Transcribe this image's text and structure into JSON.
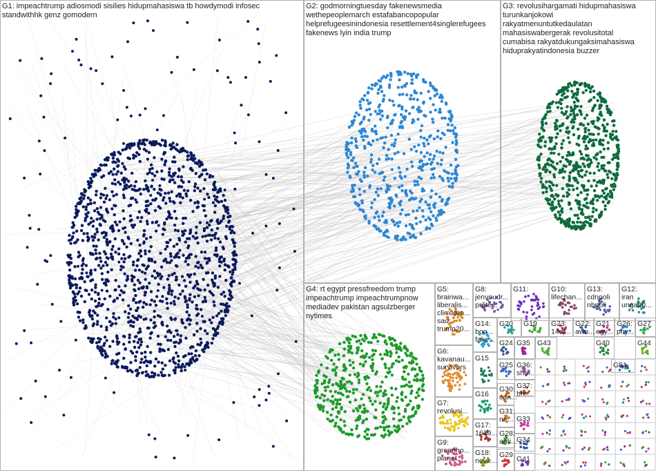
{
  "groups": [
    {
      "lines": [
        "G1: impeachtrump adiosmodi sisilies hidupmahasiswa tb howdymodi infosec",
        "standwithhk genz gomodern"
      ]
    },
    {
      "lines": [
        "G2: godmorningtuesday fakenewsmedia",
        "wethepeoplemarch estafabancopopular",
        "helprefugeesinindonesia resettlement4singlerefugees",
        "fakenews lyin india trump"
      ]
    },
    {
      "lines": [
        "G3: revolusihargamati hidupmahasiswa",
        "turunkanjokowi",
        "rakyatmenuntutkedaulatan",
        "mahasiswabergerak revolusitotal",
        "cumabisa rakyatdukungaksimahasiswa",
        "hiduprakyatindonesia buzzer"
      ]
    },
    {
      "lines": [
        "G4: rt egypt pressfreedom trump",
        "impeachtrump impeachtrumpnow",
        "mediadev pakistan agsulzberger",
        "nytimes"
      ]
    },
    {
      "lines": [
        "G5:",
        "brainwa...",
        "liberalis...",
        "climatea...",
        "sad",
        "trump20..."
      ]
    },
    {
      "lines": [
        "G6:",
        "kavanau...",
        "survivors"
      ]
    },
    {
      "lines": [
        "G7:",
        "revolusi..."
      ]
    },
    {
      "lines": [
        "G8:",
        "jenvoudr...",
        "prête..."
      ]
    },
    {
      "lines": [
        "G9:",
        "greenho...",
        "planet..."
      ]
    },
    {
      "lines": [
        "G10:",
        "lifechan..."
      ]
    },
    {
      "lines": [
        "G11:"
      ]
    },
    {
      "lines": [
        "G12:",
        "iran",
        "unga20..."
      ]
    },
    {
      "lines": [
        "G13:",
        "cdnpoli",
        "nbpoli"
      ]
    },
    {
      "lines": [
        "G14:",
        "boo...",
        "fake..."
      ]
    },
    {
      "lines": [
        "G15"
      ]
    },
    {
      "lines": [
        "G16"
      ]
    },
    {
      "lines": [
        "G17:",
        "1619..."
      ]
    },
    {
      "lines": [
        "G18:",
        "neve..."
      ]
    },
    {
      "lines": [
        "G20"
      ]
    },
    {
      "lines": [
        "G19"
      ]
    },
    {
      "lines": [
        "G23:",
        "14di..."
      ]
    },
    {
      "lines": [
        "G22:",
        "awn..."
      ]
    },
    {
      "lines": [
        "G21",
        "egy..."
      ]
    },
    {
      "lines": [
        "G26:",
        "phy..."
      ]
    },
    {
      "lines": [
        "G27"
      ]
    },
    {
      "lines": [
        "G24"
      ]
    },
    {
      "lines": [
        "G35"
      ]
    },
    {
      "lines": [
        "G43"
      ]
    },
    {
      "lines": [
        "G40"
      ]
    },
    {
      "lines": [
        "G44"
      ]
    },
    {
      "lines": [
        "G25"
      ]
    },
    {
      "lines": [
        "G36:",
        "sho..."
      ]
    },
    {
      "lines": [
        "G51"
      ]
    },
    {
      "lines": [
        "G37:",
        "bre..."
      ]
    },
    {
      "lines": [
        "G30:",
        "can..."
      ]
    },
    {
      "lines": [
        "G31:",
        "ne..."
      ]
    },
    {
      "lines": [
        "G33"
      ]
    },
    {
      "lines": [
        "G28:",
        "anti..."
      ]
    },
    {
      "lines": [
        "G34"
      ]
    },
    {
      "lines": [
        "G29"
      ]
    },
    {
      "lines": [
        "G41"
      ]
    }
  ]
}
